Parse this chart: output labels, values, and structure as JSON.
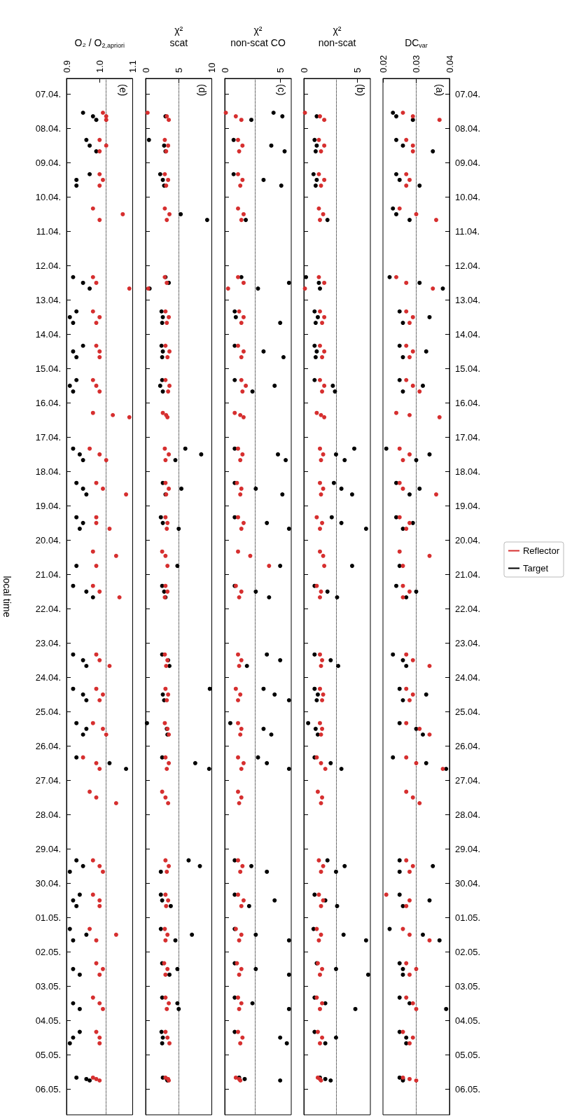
{
  "chart_data": [
    {
      "type": "scatter",
      "orientation": "horizontal",
      "xlabel": "O₂ / O$_{2,apriori}$",
      "ylabel": "local time",
      "xlim": [
        0.9,
        1.1
      ],
      "xticks": [
        {
          "value": 0.9,
          "label": "0.9"
        },
        {
          "value": 1.0,
          "label": "1.0"
        },
        {
          "value": 1.1,
          "label": "1.1"
        }
      ],
      "ylim": [
        "--05-06T18:00",
        "--04-06T13:00"
      ],
      "yticks": [
        {
          "value": "--04-07",
          "label": "07.04."
        },
        {
          "value": "--04-08",
          "label": "08.04."
        },
        {
          "value": "--04-09",
          "label": "09.04."
        },
        {
          "value": "--04-10",
          "label": "10.04."
        },
        {
          "value": "--04-11",
          "label": "11.04."
        },
        {
          "value": "--04-12",
          "label": "12.04."
        },
        {
          "value": "--04-13",
          "label": "13.04."
        },
        {
          "value": "--04-14",
          "label": "14.04."
        },
        {
          "value": "--04-15",
          "label": "15.04."
        },
        {
          "value": "--04-16",
          "label": "16.04."
        },
        {
          "value": "--04-17",
          "label": "17.04."
        },
        {
          "value": "--04-18",
          "label": "18.04."
        },
        {
          "value": "--04-19",
          "label": "19.04."
        },
        {
          "value": "--04-20",
          "label": "20.04."
        },
        {
          "value": "--04-21",
          "label": "21.04."
        },
        {
          "value": "--04-22",
          "label": "22.04."
        },
        {
          "value": "--04-23",
          "label": "23.04."
        },
        {
          "value": "--04-24",
          "label": "24.04."
        },
        {
          "value": "--04-25",
          "label": "25.04."
        },
        {
          "value": "--04-26",
          "label": "26.04."
        },
        {
          "value": "--04-27",
          "label": "27.04."
        },
        {
          "value": "--04-28",
          "label": "28.04."
        },
        {
          "value": "--04-29",
          "label": "29.04."
        },
        {
          "value": "--04-30",
          "label": "30.04."
        },
        {
          "value": "--05-01",
          "label": "01.05."
        },
        {
          "value": "--05-02",
          "label": "02.05."
        },
        {
          "value": "--05-03",
          "label": "03.05."
        },
        {
          "value": "--05-04",
          "label": "04.05."
        },
        {
          "value": "--05-05",
          "label": "05.05."
        },
        {
          "value": "--05-06",
          "label": "06.05."
        }
      ],
      "x": [
        "--04-07T13:00",
        "--04-07T15:30",
        "--04-07T18:00",
        "--04-08T08:00",
        "--04-08T12:00",
        "--04-08T16:00",
        "--04-09T08:00",
        "--04-09T12:00",
        "--04-09T16:00",
        "--04-10T08:00",
        "--04-10T12:00",
        "--04-10T16:00",
        "--04-12T08:00",
        "--04-12T12:00",
        "--04-12T16:00",
        "--04-13T08:00",
        "--04-13T12:00",
        "--04-13T16:00",
        "--04-14T08:00",
        "--04-14T12:00",
        "--04-14T16:00",
        "--04-15T08:00",
        "--04-15T12:00",
        "--04-15T16:00",
        "--04-16T07:00",
        "--04-16T08:30",
        "--04-16T10:00",
        "--04-17T08:00",
        "--04-17T12:00",
        "--04-17T16:00",
        "--04-18T08:00",
        "--04-18T12:00",
        "--04-18T16:00",
        "--04-19T08:00",
        "--04-19T12:00",
        "--04-19T16:00",
        "--04-20T08:00",
        "--04-20T11:00",
        "--04-20T18:00",
        "--04-21T08:00",
        "--04-21T12:00",
        "--04-21T16:00",
        "--04-23T08:00",
        "--04-23T12:00",
        "--04-23T16:00",
        "--04-24T08:00",
        "--04-24T12:00",
        "--04-24T16:00",
        "--04-25T08:00",
        "--04-25T12:00",
        "--04-25T16:00",
        "--04-26T08:00",
        "--04-26T12:00",
        "--04-26T16:00",
        "--04-27T08:00",
        "--04-27T12:00",
        "--04-27T16:00",
        "--04-29T08:00",
        "--04-29T12:00",
        "--04-29T16:00",
        "--04-30T08:00",
        "--04-30T12:00",
        "--04-30T16:00",
        "--05-01T08:00",
        "--05-01T12:00",
        "--05-01T16:00",
        "--05-02T08:00",
        "--05-02T12:00",
        "--05-02T16:00",
        "--05-03T08:00",
        "--05-03T12:00",
        "--05-03T16:00",
        "--05-04T08:00",
        "--05-04T12:00",
        "--05-04T16:00",
        "--05-05T16:00",
        "--05-05T17:00",
        "--05-05T18:00"
      ],
      "series": [
        {
          "color": "#d62f2f",
          "values": [
            1.01,
            1.02,
            1.02,
            1.0,
            1.02,
            1.0,
            1.0,
            1.01,
            1.0,
            0.98,
            1.07,
            1.0,
            0.98,
            0.99,
            1.09,
            0.98,
            1.0,
            0.99,
            0.99,
            1.0,
            1.0,
            0.98,
            0.99,
            1.0,
            0.98,
            1.04,
            1.09,
            0.97,
            1.0,
            1.02,
            0.99,
            1.01,
            1.08,
            0.99,
            0.99,
            1.03,
            0.98,
            1.05,
            0.99,
            0.98,
            1.0,
            1.06,
            0.99,
            1.0,
            1.03,
            0.99,
            1.01,
            1.0,
            0.98,
            1.01,
            1.02,
            0.95,
            0.99,
            1.0,
            0.97,
            0.99,
            1.05,
            0.98,
            1.0,
            1.01,
            0.98,
            1.0,
            1.0,
            0.97,
            1.05,
            0.99,
            0.99,
            1.01,
            1.0,
            0.98,
            1.0,
            1.01,
            0.99,
            1.0,
            1.0,
            0.98,
            0.99,
            1.0
          ]
        },
        {
          "color": "#000000",
          "values": [
            0.95,
            0.98,
            0.99,
            0.96,
            0.97,
            0.99,
            0.97,
            0.93,
            0.93,
            null,
            null,
            null,
            0.92,
            0.95,
            0.97,
            0.93,
            0.91,
            0.92,
            0.95,
            0.92,
            0.93,
            0.93,
            0.91,
            0.92,
            null,
            null,
            null,
            0.92,
            0.94,
            0.95,
            0.93,
            0.95,
            0.96,
            0.93,
            0.95,
            0.94,
            null,
            null,
            0.93,
            0.92,
            0.96,
            0.98,
            0.92,
            0.95,
            0.96,
            0.92,
            0.95,
            0.96,
            0.93,
            0.96,
            0.95,
            0.93,
            1.03,
            1.08,
            null,
            null,
            null,
            0.93,
            0.95,
            0.91,
            0.94,
            0.92,
            0.93,
            0.91,
            0.96,
            0.92,
            null,
            0.92,
            0.94,
            null,
            0.92,
            0.94,
            0.94,
            0.92,
            0.91,
            0.93,
            0.96,
            0.97
          ]
        }
      ],
      "ref_lines": [
        {
          "axis": "x",
          "value": 1.02,
          "line_style": "dotted",
          "color": "#000000"
        }
      ],
      "annotations": [
        "(e)"
      ],
      "marker": "circle"
    },
    {
      "type": "scatter",
      "orientation": "horizontal",
      "xlabel": "χ²\nscat",
      "xlim": [
        0,
        10
      ],
      "xticks": [
        0,
        5,
        10
      ],
      "ylim": [
        "--05-06T18:00",
        "--04-06T13:00"
      ],
      "tick_labels": "x",
      "yticks": [
        {
          "value": "--04-07",
          "label": null
        },
        {
          "value": "--04-08",
          "label": null
        },
        {
          "value": "--04-09",
          "label": null
        },
        {
          "value": "--04-10",
          "label": null
        },
        {
          "value": "--04-11",
          "label": null
        },
        {
          "value": "--04-12",
          "label": null
        },
        {
          "value": "--04-13",
          "label": null
        },
        {
          "value": "--04-14",
          "label": null
        },
        {
          "value": "--04-15",
          "label": null
        },
        {
          "value": "--04-16",
          "label": null
        },
        {
          "value": "--04-17",
          "label": null
        },
        {
          "value": "--04-18",
          "label": null
        },
        {
          "value": "--04-19",
          "label": null
        },
        {
          "value": "--04-20",
          "label": null
        },
        {
          "value": "--04-21",
          "label": null
        },
        {
          "value": "--04-22",
          "label": null
        },
        {
          "value": "--04-23",
          "label": null
        },
        {
          "value": "--04-24",
          "label": null
        },
        {
          "value": "--04-25",
          "label": null
        },
        {
          "value": "--04-26",
          "label": null
        },
        {
          "value": "--04-27",
          "label": null
        },
        {
          "value": "--04-28",
          "label": null
        },
        {
          "value": "--04-29",
          "label": null
        },
        {
          "value": "--04-30",
          "label": null
        },
        {
          "value": "--05-01",
          "label": null
        },
        {
          "value": "--05-02",
          "label": null
        },
        {
          "value": "--05-03",
          "label": null
        },
        {
          "value": "--05-04",
          "label": null
        },
        {
          "value": "--05-05",
          "label": null
        },
        {
          "value": "--05-06",
          "label": null
        }
      ],
      "x": [
        "--04-07T13:00",
        "--04-07T15:30",
        "--04-07T18:00",
        "--04-08T08:00",
        "--04-08T12:00",
        "--04-08T16:00",
        "--04-09T08:00",
        "--04-09T12:00",
        "--04-09T16:00",
        "--04-10T08:00",
        "--04-10T12:00",
        "--04-10T16:00",
        "--04-12T08:00",
        "--04-12T12:00",
        "--04-12T16:00",
        "--04-13T08:00",
        "--04-13T12:00",
        "--04-13T16:00",
        "--04-14T08:00",
        "--04-14T12:00",
        "--04-14T16:00",
        "--04-15T08:00",
        "--04-15T12:00",
        "--04-15T16:00",
        "--04-16T07:00",
        "--04-16T08:30",
        "--04-16T10:00",
        "--04-17T08:00",
        "--04-17T12:00",
        "--04-17T16:00",
        "--04-18T08:00",
        "--04-18T12:00",
        "--04-18T16:00",
        "--04-19T08:00",
        "--04-19T12:00",
        "--04-19T16:00",
        "--04-20T08:00",
        "--04-20T11:00",
        "--04-20T18:00",
        "--04-21T08:00",
        "--04-21T12:00",
        "--04-21T16:00",
        "--04-23T08:00",
        "--04-23T12:00",
        "--04-23T16:00",
        "--04-24T08:00",
        "--04-24T12:00",
        "--04-24T16:00",
        "--04-25T08:00",
        "--04-25T12:00",
        "--04-25T16:00",
        "--04-26T08:00",
        "--04-26T12:00",
        "--04-26T16:00",
        "--04-27T08:00",
        "--04-27T12:00",
        "--04-27T16:00",
        "--04-29T08:00",
        "--04-29T12:00",
        "--04-29T16:00",
        "--04-30T08:00",
        "--04-30T12:00",
        "--04-30T16:00",
        "--05-01T08:00",
        "--05-01T12:00",
        "--05-01T16:00",
        "--05-02T08:00",
        "--05-02T12:00",
        "--05-02T16:00",
        "--05-03T08:00",
        "--05-03T12:00",
        "--05-03T16:00",
        "--05-04T08:00",
        "--05-04T12:00",
        "--05-04T16:00",
        "--05-05T16:00",
        "--05-05T17:00",
        "--05-05T18:00"
      ],
      "series": [
        {
          "color": "#d62f2f",
          "values": [
            0.3,
            3.2,
            3.5,
            2.9,
            3.4,
            3.1,
            2.9,
            3.4,
            3.1,
            2.9,
            3.6,
            3.2,
            2.9,
            3.2,
            0.4,
            3.0,
            3.5,
            3.2,
            3.0,
            3.6,
            3.3,
            3.0,
            3.6,
            3.4,
            2.6,
            3.1,
            3.3,
            2.9,
            3.5,
            3.0,
            3.0,
            3.5,
            3.1,
            3.0,
            3.3,
            3.2,
            2.5,
            3.0,
            3.3,
            3.0,
            3.3,
            2.9,
            2.9,
            3.3,
            3.1,
            3.0,
            3.4,
            3.2,
            2.9,
            3.3,
            3.5,
            3.0,
            3.5,
            3.2,
            2.5,
            3.0,
            3.4,
            3.0,
            3.5,
            3.2,
            3.0,
            3.4,
            3.1,
            2.9,
            3.3,
            3.0,
            2.8,
            3.3,
            3.0,
            3.0,
            3.5,
            3.2,
            3.0,
            3.3,
            3.6,
            3.0,
            3.4,
            3.5
          ]
        },
        {
          "color": "#000000",
          "values": [
            null,
            3.0,
            null,
            0.5,
            2.8,
            3.0,
            2.2,
            2.6,
            2.8,
            null,
            5.3,
            9.3,
            3.0,
            3.5,
            0.6,
            2.4,
            2.6,
            2.5,
            2.4,
            2.6,
            2.5,
            2.5,
            2.2,
            2.6,
            null,
            null,
            null,
            6.0,
            8.4,
            4.5,
            2.6,
            5.4,
            3.0,
            2.3,
            2.6,
            5.0,
            null,
            null,
            4.8,
            2.5,
            2.8,
            3.0,
            2.5,
            3.4,
            3.6,
            9.7,
            2.6,
            2.8,
            0.2,
            3.2,
            3.3,
            2.5,
            7.5,
            9.6,
            null,
            null,
            null,
            6.5,
            8.2,
            2.3,
            2.3,
            2.5,
            3.8,
            2.3,
            7.0,
            4.5,
            2.5,
            4.8,
            3.6,
            2.5,
            4.8,
            5.0,
            2.4,
            2.6,
            2.5,
            2.6,
            3.2,
            3.3
          ]
        }
      ],
      "ref_lines": [
        {
          "axis": "x",
          "value": 5,
          "line_style": "dotted",
          "color": "#000000"
        }
      ],
      "annotations": [
        "(d)"
      ],
      "marker": "circle"
    },
    {
      "type": "scatter",
      "orientation": "horizontal",
      "xlabel": "χ²\nnon-scat CO",
      "xlim": [
        0,
        6
      ],
      "xticks": [
        0,
        5
      ],
      "ylim": [
        "--05-06T18:00",
        "--04-06T13:00"
      ],
      "tick_labels": "x",
      "yticks": [
        {
          "value": "--04-07",
          "label": null
        },
        {
          "value": "--04-08",
          "label": null
        },
        {
          "value": "--04-09",
          "label": null
        },
        {
          "value": "--04-10",
          "label": null
        },
        {
          "value": "--04-11",
          "label": null
        },
        {
          "value": "--04-12",
          "label": null
        },
        {
          "value": "--04-13",
          "label": null
        },
        {
          "value": "--04-14",
          "label": null
        },
        {
          "value": "--04-15",
          "label": null
        },
        {
          "value": "--04-16",
          "label": null
        },
        {
          "value": "--04-17",
          "label": null
        },
        {
          "value": "--04-18",
          "label": null
        },
        {
          "value": "--04-19",
          "label": null
        },
        {
          "value": "--04-20",
          "label": null
        },
        {
          "value": "--04-21",
          "label": null
        },
        {
          "value": "--04-22",
          "label": null
        },
        {
          "value": "--04-23",
          "label": null
        },
        {
          "value": "--04-24",
          "label": null
        },
        {
          "value": "--04-25",
          "label": null
        },
        {
          "value": "--04-26",
          "label": null
        },
        {
          "value": "--04-27",
          "label": null
        },
        {
          "value": "--04-28",
          "label": null
        },
        {
          "value": "--04-29",
          "label": null
        },
        {
          "value": "--04-30",
          "label": null
        },
        {
          "value": "--05-01",
          "label": null
        },
        {
          "value": "--05-02",
          "label": null
        },
        {
          "value": "--05-03",
          "label": null
        },
        {
          "value": "--05-04",
          "label": null
        },
        {
          "value": "--05-05",
          "label": null
        },
        {
          "value": "--05-06",
          "label": null
        }
      ],
      "x": [
        "--04-07T13:00",
        "--04-07T15:30",
        "--04-07T18:00",
        "--04-08T08:00",
        "--04-08T12:00",
        "--04-08T16:00",
        "--04-09T08:00",
        "--04-09T12:00",
        "--04-09T16:00",
        "--04-10T08:00",
        "--04-10T12:00",
        "--04-10T16:00",
        "--04-12T08:00",
        "--04-12T12:00",
        "--04-12T16:00",
        "--04-13T08:00",
        "--04-13T12:00",
        "--04-13T16:00",
        "--04-14T08:00",
        "--04-14T12:00",
        "--04-14T16:00",
        "--04-15T08:00",
        "--04-15T12:00",
        "--04-15T16:00",
        "--04-16T07:00",
        "--04-16T08:30",
        "--04-16T10:00",
        "--04-17T08:00",
        "--04-17T12:00",
        "--04-17T16:00",
        "--04-18T08:00",
        "--04-18T12:00",
        "--04-18T16:00",
        "--04-19T08:00",
        "--04-19T12:00",
        "--04-19T16:00",
        "--04-20T08:00",
        "--04-20T11:00",
        "--04-20T18:00",
        "--04-21T08:00",
        "--04-21T12:00",
        "--04-21T16:00",
        "--04-23T08:00",
        "--04-23T12:00",
        "--04-23T16:00",
        "--04-24T08:00",
        "--04-24T12:00",
        "--04-24T16:00",
        "--04-25T08:00",
        "--04-25T12:00",
        "--04-25T16:00",
        "--04-26T08:00",
        "--04-26T12:00",
        "--04-26T16:00",
        "--04-27T08:00",
        "--04-27T12:00",
        "--04-27T16:00",
        "--04-29T08:00",
        "--04-29T12:00",
        "--04-29T16:00",
        "--04-30T08:00",
        "--04-30T12:00",
        "--04-30T16:00",
        "--05-01T08:00",
        "--05-01T12:00",
        "--05-01T16:00",
        "--05-02T08:00",
        "--05-02T12:00",
        "--05-02T16:00",
        "--05-03T08:00",
        "--05-03T12:00",
        "--05-03T16:00",
        "--05-04T08:00",
        "--05-04T12:00",
        "--05-04T16:00",
        "--05-05T16:00",
        "--05-05T17:00",
        "--05-05T18:00"
      ],
      "series": [
        {
          "color": "#d62f2f",
          "values": [
            0.1,
            1.0,
            1.5,
            1.2,
            1.6,
            1.3,
            1.2,
            1.6,
            1.4,
            1.2,
            1.7,
            1.5,
            1.2,
            1.7,
            0.3,
            1.3,
            1.7,
            1.5,
            1.2,
            1.7,
            1.5,
            1.5,
            1.9,
            1.6,
            0.9,
            1.4,
            1.7,
            1.2,
            1.6,
            1.4,
            1.1,
            1.5,
            1.4,
            1.2,
            1.7,
            1.5,
            1.2,
            2.3,
            4.0,
            1.0,
            1.5,
            1.3,
            1.2,
            1.5,
            1.3,
            1.0,
            1.4,
            1.2,
            1.2,
            1.5,
            1.4,
            1.2,
            1.7,
            1.5,
            1.2,
            1.5,
            1.3,
            1.2,
            1.6,
            1.4,
            1.2,
            1.7,
            1.5,
            1.0,
            1.5,
            1.3,
            1.1,
            1.5,
            1.3,
            1.2,
            1.5,
            1.3,
            1.2,
            1.6,
            1.4,
            1.0,
            1.3,
            1.4
          ]
        },
        {
          "color": "#000000",
          "values": [
            4.4,
            5.2,
            2.4,
            0.8,
            4.2,
            5.4,
            0.8,
            3.5,
            5.1,
            null,
            null,
            1.9,
            1.5,
            5.8,
            3.0,
            0.9,
            1.0,
            5.0,
            0.9,
            3.5,
            5.3,
            0.9,
            4.5,
            2.5,
            null,
            null,
            null,
            0.9,
            4.8,
            5.5,
            0.9,
            2.8,
            5.2,
            0.9,
            3.8,
            5.8,
            null,
            null,
            5.0,
            0.9,
            2.8,
            4.0,
            3.8,
            5.0,
            2.0,
            3.5,
            4.5,
            5.8,
            0.5,
            3.5,
            4.2,
            3.0,
            3.8,
            5.8,
            null,
            null,
            null,
            0.9,
            2.4,
            3.8,
            0.9,
            4.5,
            2.2,
            0.9,
            2.8,
            5.8,
            0.9,
            2.8,
            5.8,
            0.9,
            2.5,
            5.8,
            0.9,
            5.0,
            5.6,
            1.3,
            1.8,
            5.0
          ]
        }
      ],
      "ref_lines": [
        {
          "axis": "x",
          "value": 2.7,
          "line_style": "dotted",
          "color": "#000000"
        }
      ],
      "annotations": [
        "(c)"
      ],
      "marker": "circle"
    },
    {
      "type": "scatter",
      "orientation": "horizontal",
      "xlabel": "χ²\nnon-scat",
      "xlim": [
        0,
        6.2
      ],
      "xticks": [
        0,
        5
      ],
      "ylim": [
        "--05-06T18:00",
        "--04-06T13:00"
      ],
      "tick_labels": "x",
      "yticks": [
        {
          "value": "--04-07",
          "label": null
        },
        {
          "value": "--04-08",
          "label": null
        },
        {
          "value": "--04-09",
          "label": null
        },
        {
          "value": "--04-10",
          "label": null
        },
        {
          "value": "--04-11",
          "label": null
        },
        {
          "value": "--04-12",
          "label": null
        },
        {
          "value": "--04-13",
          "label": null
        },
        {
          "value": "--04-14",
          "label": null
        },
        {
          "value": "--04-15",
          "label": null
        },
        {
          "value": "--04-16",
          "label": null
        },
        {
          "value": "--04-17",
          "label": null
        },
        {
          "value": "--04-18",
          "label": null
        },
        {
          "value": "--04-19",
          "label": null
        },
        {
          "value": "--04-20",
          "label": null
        },
        {
          "value": "--04-21",
          "label": null
        },
        {
          "value": "--04-22",
          "label": null
        },
        {
          "value": "--04-23",
          "label": null
        },
        {
          "value": "--04-24",
          "label": null
        },
        {
          "value": "--04-25",
          "label": null
        },
        {
          "value": "--04-26",
          "label": null
        },
        {
          "value": "--04-27",
          "label": null
        },
        {
          "value": "--04-28",
          "label": null
        },
        {
          "value": "--04-29",
          "label": null
        },
        {
          "value": "--04-30",
          "label": null
        },
        {
          "value": "--05-01",
          "label": null
        },
        {
          "value": "--05-02",
          "label": null
        },
        {
          "value": "--05-03",
          "label": null
        },
        {
          "value": "--05-04",
          "label": null
        },
        {
          "value": "--05-05",
          "label": null
        },
        {
          "value": "--05-06",
          "label": null
        }
      ],
      "x": [
        "--04-07T13:00",
        "--04-07T15:30",
        "--04-07T18:00",
        "--04-08T08:00",
        "--04-08T12:00",
        "--04-08T16:00",
        "--04-09T08:00",
        "--04-09T12:00",
        "--04-09T16:00",
        "--04-10T08:00",
        "--04-10T12:00",
        "--04-10T16:00",
        "--04-12T08:00",
        "--04-12T12:00",
        "--04-12T16:00",
        "--04-13T08:00",
        "--04-13T12:00",
        "--04-13T16:00",
        "--04-14T08:00",
        "--04-14T12:00",
        "--04-14T16:00",
        "--04-15T08:00",
        "--04-15T12:00",
        "--04-15T16:00",
        "--04-16T07:00",
        "--04-16T08:30",
        "--04-16T10:00",
        "--04-17T08:00",
        "--04-17T12:00",
        "--04-17T16:00",
        "--04-18T08:00",
        "--04-18T12:00",
        "--04-18T16:00",
        "--04-19T08:00",
        "--04-19T12:00",
        "--04-19T16:00",
        "--04-20T08:00",
        "--04-20T11:00",
        "--04-20T18:00",
        "--04-21T08:00",
        "--04-21T12:00",
        "--04-21T16:00",
        "--04-23T08:00",
        "--04-23T12:00",
        "--04-23T16:00",
        "--04-24T08:00",
        "--04-24T12:00",
        "--04-24T16:00",
        "--04-25T08:00",
        "--04-25T12:00",
        "--04-25T16:00",
        "--04-26T08:00",
        "--04-26T12:00",
        "--04-26T16:00",
        "--04-27T08:00",
        "--04-27T12:00",
        "--04-27T16:00",
        "--04-29T08:00",
        "--04-29T12:00",
        "--04-29T16:00",
        "--04-30T08:00",
        "--04-30T12:00",
        "--04-30T16:00",
        "--05-01T08:00",
        "--05-01T12:00",
        "--05-01T16:00",
        "--05-02T08:00",
        "--05-02T12:00",
        "--05-02T16:00",
        "--05-03T08:00",
        "--05-03T12:00",
        "--05-03T16:00",
        "--05-04T08:00",
        "--05-04T12:00",
        "--05-04T16:00",
        "--05-05T16:00",
        "--05-05T17:00",
        "--05-05T18:00"
      ],
      "series": [
        {
          "color": "#d62f2f",
          "values": [
            0.1,
            1.5,
            1.9,
            1.4,
            1.9,
            1.6,
            1.4,
            1.9,
            1.6,
            1.4,
            1.8,
            1.5,
            1.4,
            1.9,
            0.1,
            1.5,
            1.9,
            1.7,
            1.5,
            1.9,
            1.7,
            1.5,
            1.9,
            1.7,
            1.2,
            1.6,
            1.9,
            1.5,
            1.8,
            1.6,
            1.5,
            1.8,
            1.6,
            1.2,
            1.7,
            1.5,
            1.5,
            1.8,
            1.9,
            1.2,
            1.6,
            1.5,
            1.5,
            1.7,
            1.6,
            1.5,
            1.8,
            1.7,
            1.5,
            1.7,
            1.6,
            1.2,
            1.6,
            2.0,
            1.3,
            1.7,
            1.6,
            1.4,
            1.8,
            1.6,
            1.4,
            1.8,
            1.6,
            1.2,
            1.6,
            1.4,
            1.3,
            1.7,
            1.5,
            1.2,
            1.7,
            1.5,
            1.3,
            1.7,
            1.5,
            1.3,
            1.5,
            1.6
          ]
        },
        {
          "color": "#000000",
          "values": [
            null,
            1.2,
            null,
            1.0,
            1.2,
            1.1,
            0.9,
            1.2,
            1.1,
            null,
            null,
            2.2,
            0.2,
            1.4,
            1.5,
            1.0,
            1.3,
            1.1,
            1.0,
            1.2,
            1.1,
            1.0,
            2.7,
            2.9,
            null,
            null,
            null,
            4.7,
            3.0,
            3.8,
            2.8,
            3.5,
            4.5,
            2.6,
            3.5,
            5.8,
            null,
            null,
            4.5,
            1.0,
            2.2,
            3.1,
            1.0,
            2.5,
            3.2,
            1.0,
            1.3,
            1.2,
            0.4,
            1.1,
            1.3,
            1.0,
            2.5,
            3.5,
            null,
            null,
            null,
            2.2,
            3.8,
            3.0,
            1.0,
            2.0,
            3.1,
            0.9,
            3.7,
            5.8,
            1.2,
            3.0,
            6.0,
            1.0,
            2.0,
            4.8,
            1.0,
            3.0,
            2.0,
            1.5,
            2.0,
            2.5
          ]
        }
      ],
      "ref_lines": [
        {
          "axis": "x",
          "value": 3,
          "line_style": "dotted",
          "color": "#000000"
        }
      ],
      "annotations": [
        "(b)"
      ],
      "marker": "circle"
    },
    {
      "type": "scatter",
      "orientation": "horizontal",
      "xlabel": "DC$_{var}$",
      "xlim": [
        0.02,
        0.04
      ],
      "xticks": [
        0.02,
        0.03,
        0.04
      ],
      "ylim": [
        "--05-06T18:00",
        "--04-06T13:00"
      ],
      "legend": "right",
      "yticks": [
        {
          "value": "--04-07",
          "label": "07.04."
        },
        {
          "value": "--04-08",
          "label": "08.04."
        },
        {
          "value": "--04-09",
          "label": "09.04."
        },
        {
          "value": "--04-10",
          "label": "10.04."
        },
        {
          "value": "--04-11",
          "label": "11.04."
        },
        {
          "value": "--04-12",
          "label": "12.04."
        },
        {
          "value": "--04-13",
          "label": "13.04."
        },
        {
          "value": "--04-14",
          "label": "14.04."
        },
        {
          "value": "--04-15",
          "label": "15.04."
        },
        {
          "value": "--04-16",
          "label": "16.04."
        },
        {
          "value": "--04-17",
          "label": "17.04."
        },
        {
          "value": "--04-18",
          "label": "18.04."
        },
        {
          "value": "--04-19",
          "label": "19.04."
        },
        {
          "value": "--04-20",
          "label": "20.04."
        },
        {
          "value": "--04-21",
          "label": "21.04."
        },
        {
          "value": "--04-22",
          "label": "22.04."
        },
        {
          "value": "--04-23",
          "label": "23.04."
        },
        {
          "value": "--04-24",
          "label": "24.04."
        },
        {
          "value": "--04-25",
          "label": "25.04."
        },
        {
          "value": "--04-26",
          "label": "26.04."
        },
        {
          "value": "--04-27",
          "label": "27.04."
        },
        {
          "value": "--04-28",
          "label": "28.04."
        },
        {
          "value": "--04-29",
          "label": "29.04."
        },
        {
          "value": "--04-30",
          "label": "30.04."
        },
        {
          "value": "--05-01",
          "label": "01.05."
        },
        {
          "value": "--05-02",
          "label": "02.05."
        },
        {
          "value": "--05-03",
          "label": "03.05."
        },
        {
          "value": "--05-04",
          "label": "04.05."
        },
        {
          "value": "--05-05",
          "label": "05.05."
        },
        {
          "value": "--05-06",
          "label": "06.05."
        }
      ],
      "x": [
        "--04-07T13:00",
        "--04-07T15:30",
        "--04-07T18:00",
        "--04-08T08:00",
        "--04-08T12:00",
        "--04-08T16:00",
        "--04-09T08:00",
        "--04-09T12:00",
        "--04-09T16:00",
        "--04-10T08:00",
        "--04-10T12:00",
        "--04-10T16:00",
        "--04-12T08:00",
        "--04-12T12:00",
        "--04-12T16:00",
        "--04-13T08:00",
        "--04-13T12:00",
        "--04-13T16:00",
        "--04-14T08:00",
        "--04-14T12:00",
        "--04-14T16:00",
        "--04-15T08:00",
        "--04-15T12:00",
        "--04-15T16:00",
        "--04-16T07:00",
        "--04-16T08:30",
        "--04-16T10:00",
        "--04-17T08:00",
        "--04-17T12:00",
        "--04-17T16:00",
        "--04-18T08:00",
        "--04-18T12:00",
        "--04-18T16:00",
        "--04-19T08:00",
        "--04-19T12:00",
        "--04-19T16:00",
        "--04-20T08:00",
        "--04-20T11:00",
        "--04-20T18:00",
        "--04-21T08:00",
        "--04-21T12:00",
        "--04-21T16:00",
        "--04-23T08:00",
        "--04-23T12:00",
        "--04-23T16:00",
        "--04-24T08:00",
        "--04-24T12:00",
        "--04-24T16:00",
        "--04-25T08:00",
        "--04-25T12:00",
        "--04-25T16:00",
        "--04-26T08:00",
        "--04-26T12:00",
        "--04-26T16:00",
        "--04-27T08:00",
        "--04-27T12:00",
        "--04-27T16:00",
        "--04-29T08:00",
        "--04-29T12:00",
        "--04-29T16:00",
        "--04-30T08:00",
        "--04-30T12:00",
        "--04-30T16:00",
        "--05-01T08:00",
        "--05-01T12:00",
        "--05-01T16:00",
        "--05-02T08:00",
        "--05-02T12:00",
        "--05-02T16:00",
        "--05-03T08:00",
        "--05-03T12:00",
        "--05-03T16:00",
        "--05-04T08:00",
        "--05-04T12:00",
        "--05-04T16:00",
        "--05-05T16:00",
        "--05-05T17:00",
        "--05-05T18:00"
      ],
      "series": [
        {
          "name": "Reflector",
          "color": "#d62f2f",
          "values": [
            0.026,
            0.029,
            0.037,
            0.027,
            0.029,
            0.029,
            0.027,
            0.028,
            0.027,
            0.025,
            0.03,
            0.036,
            0.024,
            0.027,
            0.035,
            0.027,
            0.029,
            0.028,
            0.027,
            0.029,
            0.028,
            0.027,
            0.029,
            0.031,
            0.024,
            0.028,
            0.037,
            0.025,
            0.028,
            0.026,
            0.025,
            0.026,
            0.036,
            0.025,
            0.028,
            0.027,
            0.025,
            0.034,
            0.026,
            0.026,
            0.028,
            0.026,
            0.027,
            0.029,
            0.034,
            0.027,
            0.029,
            0.028,
            0.027,
            0.031,
            0.034,
            0.027,
            0.03,
            0.038,
            0.027,
            0.029,
            0.031,
            0.027,
            0.029,
            0.028,
            0.021,
            0.028,
            0.027,
            0.026,
            0.028,
            0.034,
            0.027,
            0.03,
            0.028,
            0.027,
            0.029,
            0.03,
            0.026,
            0.029,
            0.028,
            0.026,
            0.028,
            0.03
          ]
        },
        {
          "name": "Target",
          "color": "#000000",
          "values": [
            0.023,
            0.024,
            0.029,
            0.024,
            0.026,
            0.035,
            0.024,
            0.025,
            0.031,
            0.023,
            0.024,
            0.028,
            0.022,
            0.031,
            0.038,
            0.025,
            0.034,
            0.026,
            0.025,
            0.033,
            0.026,
            0.025,
            0.032,
            0.026,
            null,
            null,
            null,
            0.021,
            0.034,
            0.03,
            0.024,
            0.031,
            0.028,
            0.024,
            0.029,
            0.026,
            null,
            null,
            0.025,
            0.024,
            0.03,
            0.027,
            0.023,
            0.026,
            0.027,
            0.025,
            0.033,
            0.026,
            0.025,
            0.03,
            0.032,
            0.023,
            0.033,
            0.039,
            null,
            null,
            null,
            0.025,
            0.035,
            0.025,
            0.025,
            0.034,
            0.026,
            0.022,
            0.032,
            0.037,
            0.025,
            0.026,
            0.026,
            0.025,
            0.028,
            0.039,
            0.025,
            0.027,
            0.027,
            0.025,
            0.026,
            0.026
          ]
        }
      ],
      "ref_lines": [
        {
          "axis": "x",
          "value": 0.03,
          "line_style": "dotted",
          "color": "#000000"
        }
      ],
      "annotations": [
        "(a)"
      ],
      "marker": "circle"
    }
  ]
}
